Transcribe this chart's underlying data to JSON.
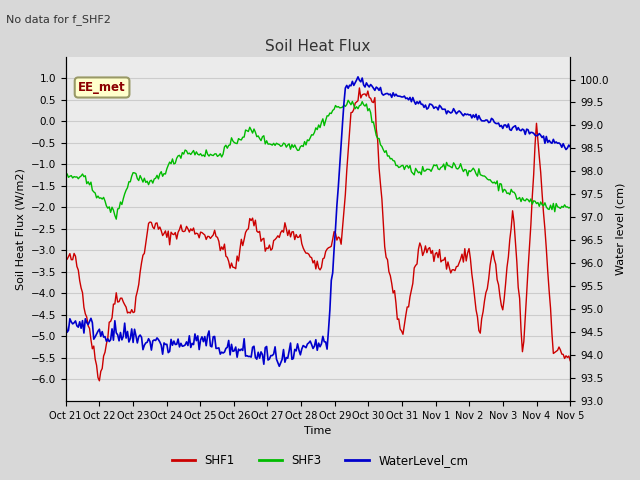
{
  "title": "Soil Heat Flux",
  "subtitle": "No data for f_SHF2",
  "ylabel_left": "Soil Heat Flux (W/m2)",
  "ylabel_right": "Water level (cm)",
  "xlabel": "Time",
  "ylim_left": [
    -6.5,
    1.5
  ],
  "ylim_right": [
    93.0,
    100.5
  ],
  "yticks_left": [
    -6.0,
    -5.5,
    -5.0,
    -4.5,
    -4.0,
    -3.5,
    -3.0,
    -2.5,
    -2.0,
    -1.5,
    -1.0,
    -0.5,
    0.0,
    0.5,
    1.0
  ],
  "yticks_right": [
    93.0,
    93.5,
    94.0,
    94.5,
    95.0,
    95.5,
    96.0,
    96.5,
    97.0,
    97.5,
    98.0,
    98.5,
    99.0,
    99.5,
    100.0
  ],
  "xtick_labels": [
    "Oct 21",
    "Oct 22",
    "Oct 23",
    "Oct 24",
    "Oct 25",
    "Oct 26",
    "Oct 27",
    "Oct 28",
    "Oct 29",
    "Oct 30",
    "Oct 31",
    "Nov 1",
    "Nov 2",
    "Nov 3",
    "Nov 4",
    "Nov 5"
  ],
  "grid_color": "#cccccc",
  "bg_color": "#d8d8d8",
  "plot_bg_color": "#ebebeb",
  "shf1_color": "#cc0000",
  "shf3_color": "#00bb00",
  "water_color": "#0000cc",
  "legend_label1": "SHF1",
  "legend_label2": "SHF3",
  "legend_label3": "WaterLevel_cm",
  "ee_met_box_color": "#ffffcc",
  "ee_met_text_color": "#8b0000",
  "ee_met_border_color": "#999966",
  "n_days": 15,
  "n_points": 360
}
